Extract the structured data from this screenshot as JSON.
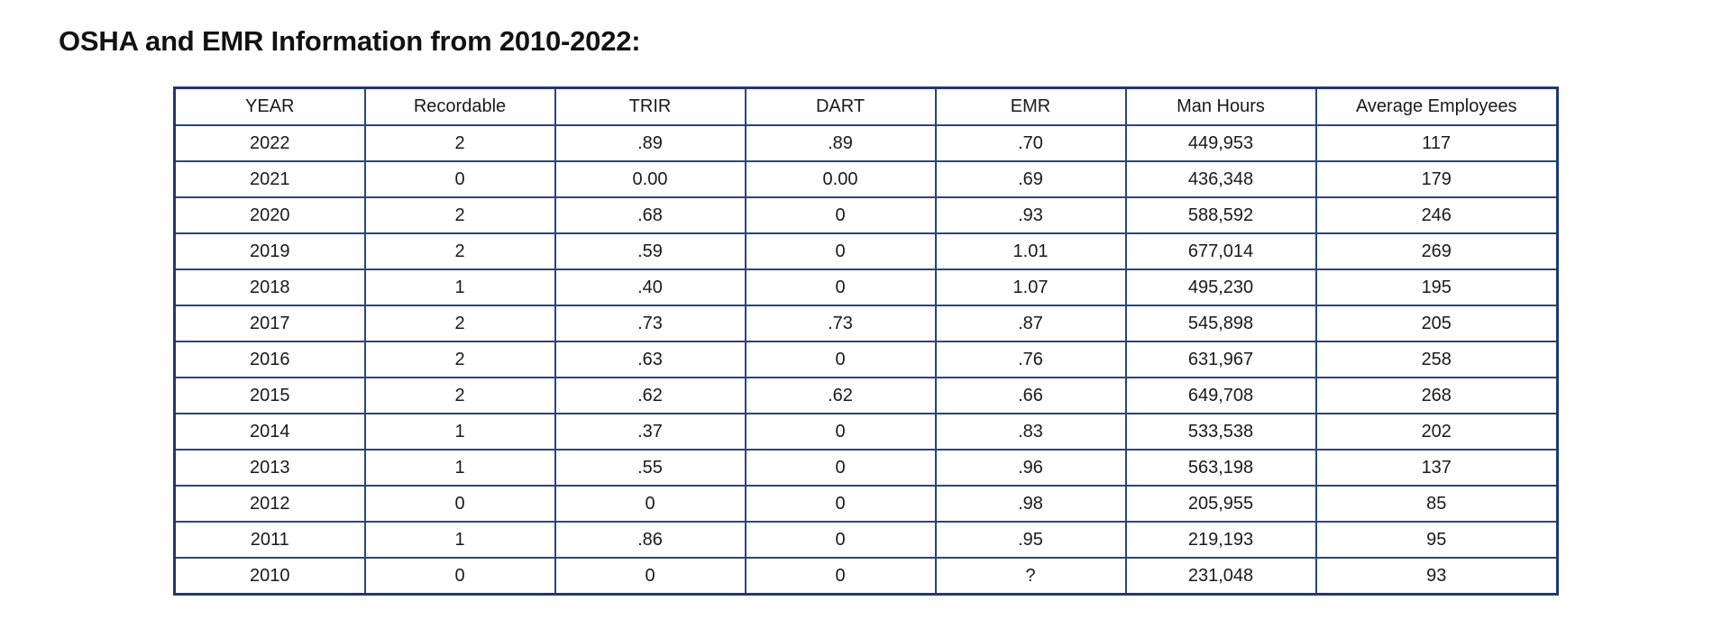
{
  "title": "OSHA and EMR Information from 2010-2022:",
  "table": {
    "columns": [
      "YEAR",
      "Recordable",
      "TRIR",
      "DART",
      "EMR",
      "Man Hours",
      "Average Employees"
    ],
    "rows": [
      [
        "2022",
        "2",
        ".89",
        ".89",
        ".70",
        "449,953",
        "117"
      ],
      [
        "2021",
        "0",
        "0.00",
        "0.00",
        ".69",
        "436,348",
        "179"
      ],
      [
        "2020",
        "2",
        ".68",
        "0",
        ".93",
        "588,592",
        "246"
      ],
      [
        "2019",
        "2",
        ".59",
        "0",
        "1.01",
        "677,014",
        "269"
      ],
      [
        "2018",
        "1",
        ".40",
        "0",
        "1.07",
        "495,230",
        "195"
      ],
      [
        "2017",
        "2",
        ".73",
        ".73",
        ".87",
        "545,898",
        "205"
      ],
      [
        "2016",
        "2",
        ".63",
        "0",
        ".76",
        "631,967",
        "258"
      ],
      [
        "2015",
        "2",
        ".62",
        ".62",
        ".66",
        "649,708",
        "268"
      ],
      [
        "2014",
        "1",
        ".37",
        "0",
        ".83",
        "533,538",
        "202"
      ],
      [
        "2013",
        "1",
        ".55",
        "0",
        ".96",
        "563,198",
        "137"
      ],
      [
        "2012",
        "0",
        "0",
        "0",
        ".98",
        "205,955",
        "85"
      ],
      [
        "2011",
        "1",
        ".86",
        "0",
        ".95",
        "219,193",
        "95"
      ],
      [
        "2010",
        "0",
        "0",
        "0",
        "?",
        "231,048",
        "93"
      ]
    ]
  },
  "colors": {
    "table_border": "#1f3a6e",
    "cell_border": "#2a4679",
    "text": "#1a1a1a",
    "background": "#ffffff"
  }
}
